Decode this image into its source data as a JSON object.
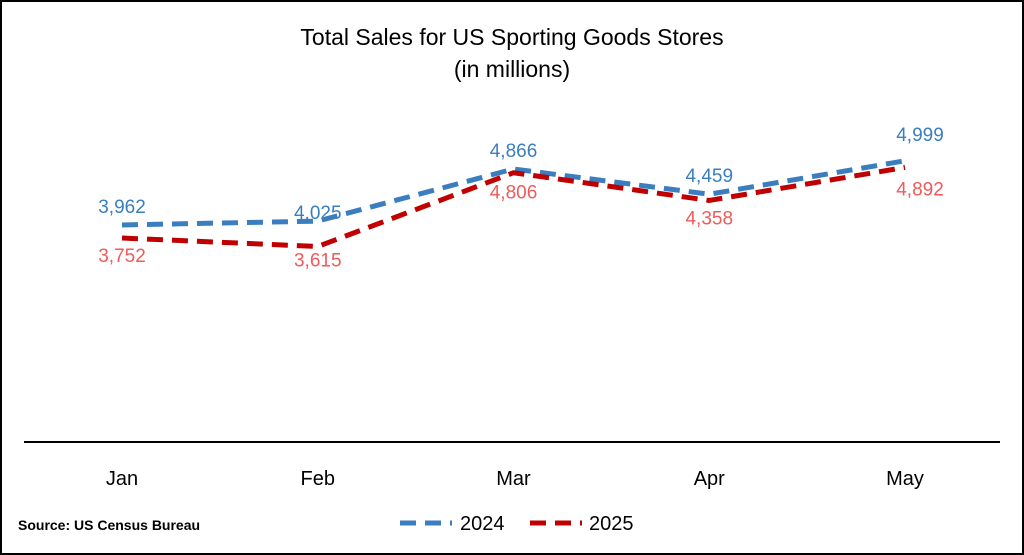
{
  "chart_data": {
    "type": "line",
    "title": "Total Sales for US Sporting Goods Stores",
    "subtitle": "(in millions)",
    "categories": [
      "Jan",
      "Feb",
      "Mar",
      "Apr",
      "May"
    ],
    "series": [
      {
        "name": "2024",
        "values": [
          3962,
          4025,
          4866,
          4459,
          4999
        ],
        "color": "#3A7EC0",
        "label_color": "#3A7EC0",
        "labels": [
          "3,962",
          "4,025",
          "4,866",
          "4,459",
          "4,999"
        ]
      },
      {
        "name": "2025",
        "values": [
          3752,
          3615,
          4806,
          4358,
          4892
        ],
        "color": "#C00000",
        "label_color": "#F05A5A",
        "labels": [
          "3,752",
          "3,615",
          "4,806",
          "4,358",
          "4,892"
        ]
      }
    ],
    "line_style": "dashed",
    "grid": false,
    "legend_position": "bottom",
    "source": "Source: US Census Bureau"
  }
}
